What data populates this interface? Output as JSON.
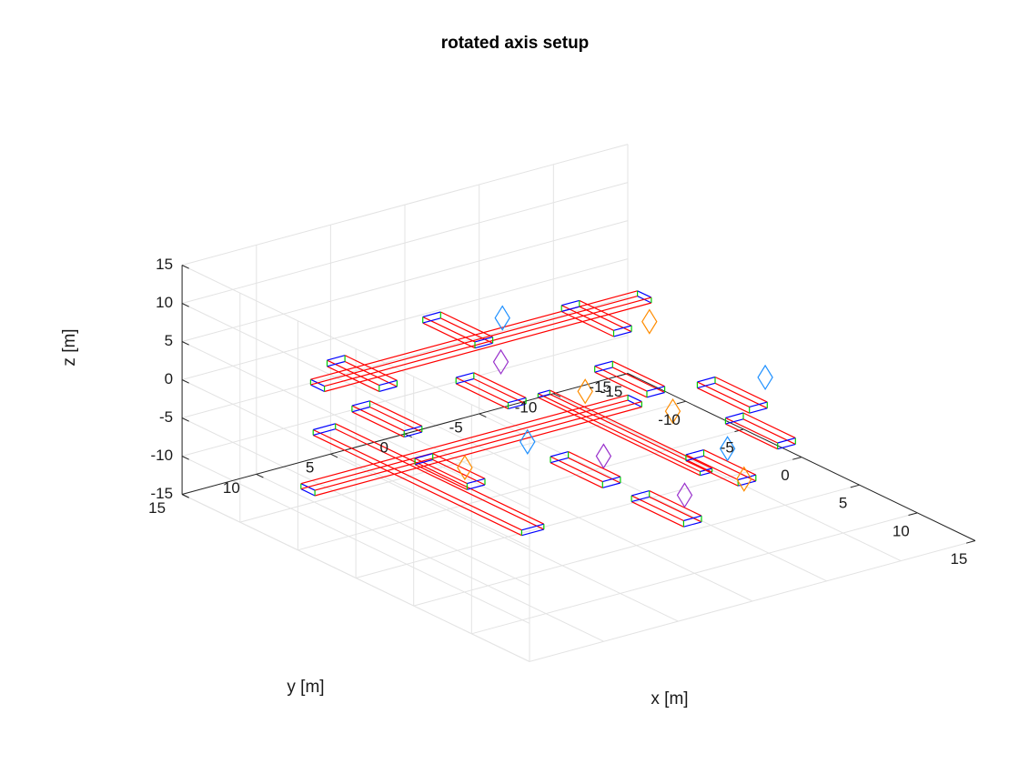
{
  "chart_data": {
    "type": "3d-line",
    "title": "rotated axis setup",
    "xlabel": "x [m]",
    "ylabel": "y [m]",
    "zlabel": "z [m]",
    "xlim": [
      -15,
      15
    ],
    "ylim": [
      -15,
      15
    ],
    "zlim": [
      -15,
      15
    ],
    "xticks": [
      -15,
      -10,
      -5,
      0,
      5,
      10,
      15
    ],
    "yticks": [
      -15,
      -10,
      -5,
      0,
      5,
      10,
      15
    ],
    "zticks": [
      -15,
      -10,
      -5,
      0,
      5,
      10,
      15
    ],
    "xtick_labels": [
      "-15",
      "-10",
      "-5",
      "0",
      "5",
      "10",
      "15"
    ],
    "ytick_labels": [
      "-15",
      "-10",
      "-5",
      "0",
      "5",
      "10",
      "15"
    ],
    "ztick_labels": [
      "-15",
      "-10",
      "-5",
      "0",
      "5",
      "10",
      "15"
    ],
    "grid": true,
    "view": {
      "azimuth": -37.5,
      "elevation": 30
    },
    "colors": {
      "axis": "#262626",
      "grid": "#e3e3e3",
      "edge_x": "#ff0000",
      "edge_y": "#0000ff",
      "edge_z": "#00cc00",
      "diamond_a": "#ff8c00",
      "diamond_b": "#1e90ff",
      "diamond_c": "#9932cc"
    },
    "boxes": [
      {
        "name": "long-boom-top",
        "center": [
          5,
          14,
          1
        ],
        "size": [
          18,
          1.5,
          0.7
        ]
      },
      {
        "name": "crossbar-left",
        "center": [
          -11,
          -2,
          -1
        ],
        "size": [
          1.2,
          22,
          0.7
        ]
      },
      {
        "name": "crossbar-right",
        "center": [
          1,
          8,
          -0.6
        ],
        "size": [
          1.2,
          22,
          0.7
        ]
      },
      {
        "name": "beam-back",
        "center": [
          4,
          0,
          -1
        ],
        "size": [
          14,
          0.8,
          0.5
        ]
      },
      {
        "name": "pontoon-1",
        "center": [
          -11,
          6,
          -1
        ],
        "size": [
          4.5,
          1.2,
          0.8
        ]
      },
      {
        "name": "pontoon-2",
        "center": [
          -13,
          -2,
          -1
        ],
        "size": [
          4.5,
          1.2,
          0.8
        ]
      },
      {
        "name": "pontoon-3",
        "center": [
          -10,
          -9,
          -1
        ],
        "size": [
          4.5,
          1.2,
          0.8
        ]
      },
      {
        "name": "pontoon-4",
        "center": [
          -5,
          2,
          -1
        ],
        "size": [
          4.5,
          1.2,
          0.8
        ]
      },
      {
        "name": "pontoon-5",
        "center": [
          -2,
          -5,
          -1
        ],
        "size": [
          4.5,
          1.2,
          0.8
        ]
      },
      {
        "name": "pontoon-6",
        "center": [
          -5,
          9,
          -1
        ],
        "size": [
          4.5,
          1.2,
          0.8
        ]
      },
      {
        "name": "pontoon-7",
        "center": [
          3,
          11,
          -1
        ],
        "size": [
          4.5,
          1.2,
          0.8
        ]
      },
      {
        "name": "pontoon-8",
        "center": [
          7,
          5,
          -1
        ],
        "size": [
          4.5,
          1.2,
          0.8
        ]
      },
      {
        "name": "pontoon-9",
        "center": [
          11,
          -1,
          -1
        ],
        "size": [
          4.5,
          1.2,
          0.8
        ]
      },
      {
        "name": "pontoon-10",
        "center": [
          8,
          -6,
          -1
        ],
        "size": [
          4.5,
          1.2,
          0.8
        ]
      },
      {
        "name": "pontoon-11",
        "center": [
          14,
          5,
          -1
        ],
        "size": [
          4.5,
          1.2,
          0.8
        ]
      },
      {
        "name": "pontoon-12",
        "center": [
          3,
          -8,
          -1
        ],
        "size": [
          4.5,
          1.2,
          0.8
        ]
      }
    ],
    "diamonds": [
      {
        "center": [
          -13,
          -5,
          -1
        ],
        "color": "diamond_b"
      },
      {
        "center": [
          -8,
          -1,
          -1
        ],
        "color": "diamond_c"
      },
      {
        "center": [
          -2,
          -2,
          -1
        ],
        "color": "diamond_a"
      },
      {
        "center": [
          -8,
          -11,
          -1
        ],
        "color": "diamond_a"
      },
      {
        "center": [
          3,
          -4,
          -1
        ],
        "color": "diamond_a"
      },
      {
        "center": [
          6,
          3,
          -1
        ],
        "color": "diamond_c"
      },
      {
        "center": [
          9,
          -3,
          -1
        ],
        "color": "diamond_b"
      },
      {
        "center": [
          2,
          -11,
          -1
        ],
        "color": "diamond_b"
      },
      {
        "center": [
          13,
          -1,
          -1
        ],
        "color": "diamond_a"
      },
      {
        "center": [
          13,
          3,
          -1
        ],
        "color": "diamond_c"
      },
      {
        "center": [
          3,
          10,
          -1
        ],
        "color": "diamond_a"
      },
      {
        "center": [
          2,
          5,
          -1
        ],
        "color": "diamond_b"
      }
    ]
  }
}
